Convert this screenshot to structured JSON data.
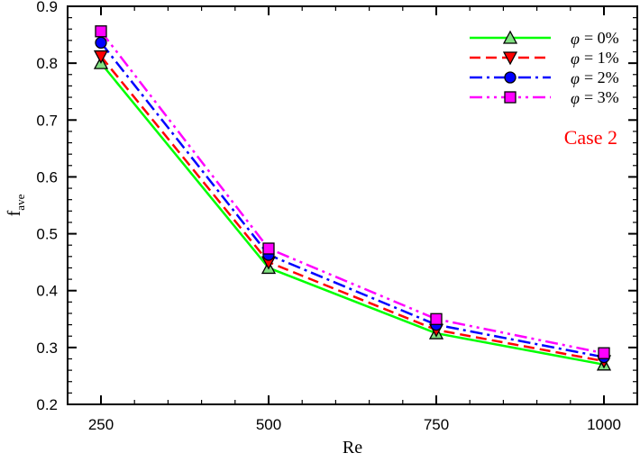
{
  "chart_data": {
    "type": "line",
    "title": "",
    "xlabel": "Re",
    "ylabel": "f_ave",
    "ylabel_main": "f",
    "ylabel_sub": "ave",
    "x": [
      250,
      500,
      750,
      1000
    ],
    "xticks": [
      "250",
      "500",
      "750",
      "1000"
    ],
    "yticks": [
      "0.2",
      "0.3",
      "0.4",
      "0.5",
      "0.6",
      "0.7",
      "0.8",
      "0.9"
    ],
    "xlim": [
      195,
      1055
    ],
    "ylim": [
      0.2,
      0.9
    ],
    "grid": false,
    "legend_position": "upper right",
    "annotation": "Case 2",
    "series": [
      {
        "name": "φ = 0%",
        "label": "= 0%",
        "color": "#00ff00",
        "dash": "solid",
        "marker": "triangle-up",
        "marker_fill": "#80e080",
        "values": [
          0.8,
          0.44,
          0.325,
          0.27
        ]
      },
      {
        "name": "φ = 1%",
        "label": "= 1%",
        "color": "#ff0000",
        "dash": "dashed",
        "marker": "triangle-down",
        "marker_fill": "#ff0000",
        "values": [
          0.812,
          0.45,
          0.331,
          0.276
        ]
      },
      {
        "name": "φ = 2%",
        "label": "= 2%",
        "color": "#0000ff",
        "dash": "dash-dot",
        "marker": "circle",
        "marker_fill": "#0000ff",
        "values": [
          0.836,
          0.463,
          0.34,
          0.283
        ]
      },
      {
        "name": "φ = 3%",
        "label": "= 3%",
        "color": "#ff00ff",
        "dash": "dash-dot-dot",
        "marker": "square",
        "marker_fill": "#ff00ff",
        "values": [
          0.856,
          0.474,
          0.35,
          0.29
        ]
      }
    ]
  }
}
